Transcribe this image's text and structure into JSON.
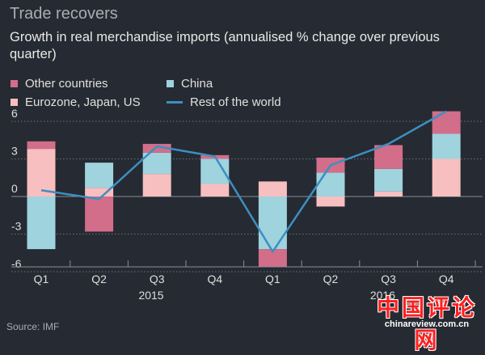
{
  "title": "Trade recovers",
  "subtitle": "Growth in real merchandise imports (annualised % change over previous quarter)",
  "source": "Source: IMF",
  "watermark": {
    "text": "中国评论网",
    "url": "chinareview.com.cn"
  },
  "legend": [
    {
      "label": "Other countries",
      "kind": "bar",
      "color": "#d26e8a"
    },
    {
      "label": "China",
      "kind": "bar",
      "color": "#9fd3de"
    },
    {
      "label": "Eurozone, Japan, US",
      "kind": "bar",
      "color": "#f7bfbf"
    },
    {
      "label": "Rest of the world",
      "kind": "line",
      "color": "#3d8fc0"
    }
  ],
  "chart_data": {
    "type": "bar",
    "stacked": true,
    "categories": [
      "Q1",
      "Q2",
      "Q3",
      "Q4",
      "Q1",
      "Q2",
      "Q3",
      "Q4"
    ],
    "year_labels": [
      {
        "label": "2015",
        "year": 2015
      },
      {
        "label": "2016",
        "year": 2016
      }
    ],
    "series": [
      {
        "name": "Eurozone, Japan, US",
        "color": "#f7bfbf",
        "values": [
          3.8,
          0.7,
          1.8,
          1.0,
          1.2,
          -0.8,
          0.4,
          3.0
        ]
      },
      {
        "name": "China",
        "color": "#9fd3de",
        "values": [
          -4.2,
          2.0,
          1.7,
          2.0,
          -4.2,
          1.9,
          1.8,
          2.0
        ]
      },
      {
        "name": "Other countries",
        "color": "#d26e8a",
        "values": [
          0.6,
          -2.8,
          0.7,
          0.3,
          -1.4,
          1.2,
          1.9,
          1.8
        ]
      }
    ],
    "line": {
      "name": "Rest of the world",
      "color": "#3d8fc0",
      "values": [
        0.5,
        -0.2,
        4.0,
        3.2,
        -4.4,
        2.5,
        4.2,
        6.8
      ]
    },
    "yticks": [
      6,
      3,
      0,
      -3,
      -6
    ],
    "ylim": [
      -6.5,
      7.2
    ],
    "grid": true,
    "legend_position": "top"
  }
}
